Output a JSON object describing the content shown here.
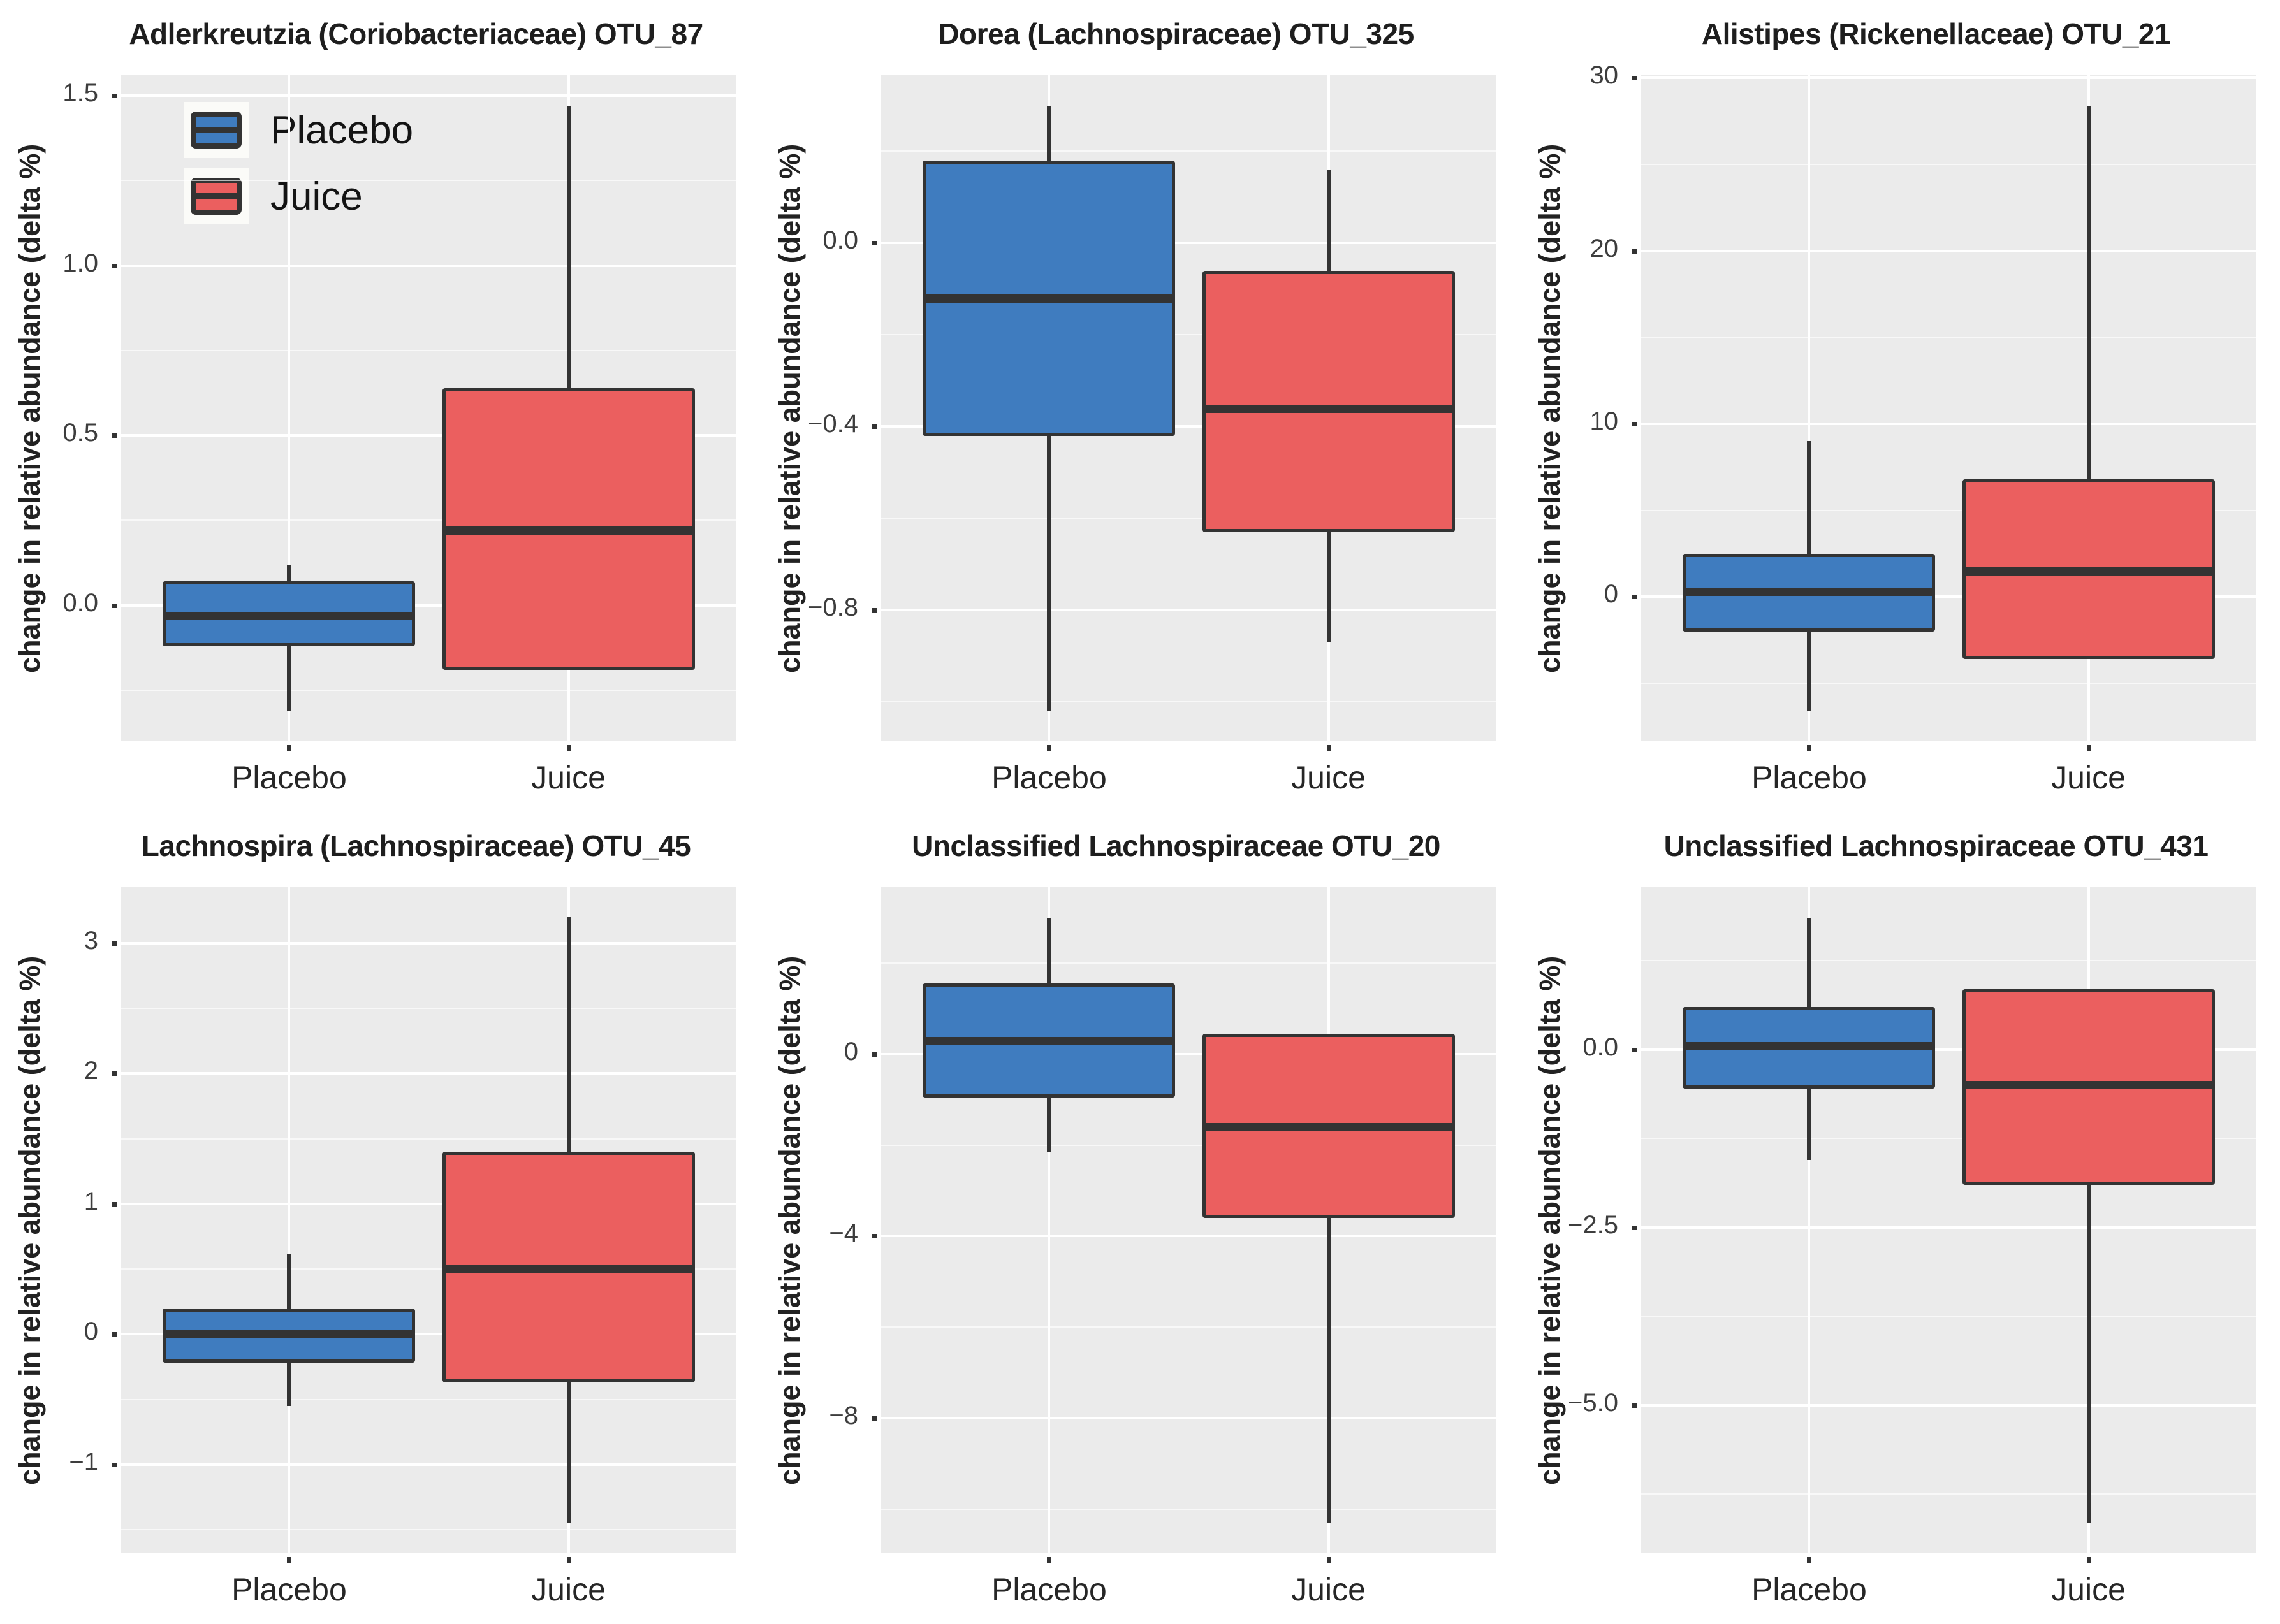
{
  "figure": {
    "kind": "boxplot-grid",
    "rows": 2,
    "cols": 3,
    "ylabel": "change in relative abundance (delta %)"
  },
  "legend": {
    "items": [
      "Placebo",
      "Juice"
    ]
  },
  "colors": {
    "placebo_fill": "#3F7CBF",
    "juice_fill": "#EB5F5F",
    "box_line": "#333333",
    "panel_background": "#EBEBEB",
    "grid_major": "#FFFFFF",
    "title_text": "#1E1E1E",
    "tick_text": "#3D3D3D"
  },
  "chart_data": [
    {
      "type": "box",
      "title": "Adlerkreutzia (Coriobacteriaceae) OTU_87",
      "ylabel": "change in relative abundance (delta %)",
      "categories": [
        "Placebo",
        "Juice"
      ],
      "ylim": [
        -0.4,
        1.56
      ],
      "yticks": [
        {
          "value": 1.5,
          "label": "1.5"
        },
        {
          "value": 1.0,
          "label": "1.0"
        },
        {
          "value": 0.5,
          "label": "0.5"
        },
        {
          "value": 0.0,
          "label": "0.0"
        }
      ],
      "yticks_minor": [
        1.25,
        0.75,
        0.25,
        -0.25
      ],
      "grid": true,
      "legend_position": "top-left-inside",
      "series": [
        {
          "name": "Placebo",
          "color": "#3F7CBF",
          "low": -0.31,
          "q1": -0.12,
          "median": -0.03,
          "q3": 0.07,
          "high": 0.12
        },
        {
          "name": "Juice",
          "color": "#EB5F5F",
          "low": -0.19,
          "q1": -0.19,
          "median": 0.22,
          "q3": 0.64,
          "high": 1.47
        }
      ]
    },
    {
      "type": "box",
      "title": "Dorea (Lachnospiraceae) OTU_325",
      "ylabel": "change in relative abundance (delta %)",
      "categories": [
        "Placebo",
        "Juice"
      ],
      "ylim": [
        -1.086,
        0.366
      ],
      "yticks": [
        {
          "value": 0.0,
          "label": "0.0"
        },
        {
          "value": -0.4,
          "label": "−0.4"
        },
        {
          "value": -0.8,
          "label": "−0.8"
        }
      ],
      "yticks_minor": [
        0.2,
        -0.2,
        -0.6,
        -1.0
      ],
      "grid": true,
      "series": [
        {
          "name": "Placebo",
          "color": "#3F7CBF",
          "low": -1.02,
          "q1": -0.42,
          "median": -0.12,
          "q3": 0.18,
          "high": 0.3
        },
        {
          "name": "Juice",
          "color": "#EB5F5F",
          "low": -0.87,
          "q1": -0.63,
          "median": -0.36,
          "q3": -0.06,
          "high": 0.16
        }
      ]
    },
    {
      "type": "box",
      "title": "Alistipes (Rickenellaceae) OTU_21",
      "ylabel": "change in relative abundance (delta %)",
      "categories": [
        "Placebo",
        "Juice"
      ],
      "ylim": [
        -8.35,
        30.15
      ],
      "yticks": [
        {
          "value": 30,
          "label": "30"
        },
        {
          "value": 20,
          "label": "20"
        },
        {
          "value": 10,
          "label": "10"
        },
        {
          "value": 0,
          "label": "0"
        }
      ],
      "yticks_minor": [
        25,
        15,
        5,
        -5
      ],
      "grid": true,
      "series": [
        {
          "name": "Placebo",
          "color": "#3F7CBF",
          "low": -6.6,
          "q1": -2.0,
          "median": 0.3,
          "q3": 2.5,
          "high": 9.0
        },
        {
          "name": "Juice",
          "color": "#EB5F5F",
          "low": -3.6,
          "q1": -3.6,
          "median": 1.5,
          "q3": 6.8,
          "high": 28.4
        }
      ]
    },
    {
      "type": "box",
      "title": "Lachnospira (Lachnospiraceae) OTU_45",
      "ylabel": "change in relative abundance (delta %)",
      "categories": [
        "Placebo",
        "Juice"
      ],
      "ylim": [
        -1.68,
        3.43
      ],
      "yticks": [
        {
          "value": 3,
          "label": "3"
        },
        {
          "value": 2,
          "label": "2"
        },
        {
          "value": 1,
          "label": "1"
        },
        {
          "value": 0,
          "label": "0"
        },
        {
          "value": -1,
          "label": "−1"
        }
      ],
      "yticks_minor": [
        2.5,
        1.5,
        0.5,
        -0.5,
        -1.5
      ],
      "grid": true,
      "series": [
        {
          "name": "Placebo",
          "color": "#3F7CBF",
          "low": -0.55,
          "q1": -0.22,
          "median": 0.0,
          "q3": 0.2,
          "high": 0.62
        },
        {
          "name": "Juice",
          "color": "#EB5F5F",
          "low": -1.45,
          "q1": -0.37,
          "median": 0.5,
          "q3": 1.4,
          "high": 3.2
        }
      ]
    },
    {
      "type": "box",
      "title": "Unclassified Lachnospiraceae OTU_20",
      "ylabel": "change in relative abundance (delta %)",
      "categories": [
        "Placebo",
        "Juice"
      ],
      "ylim": [
        -10.97,
        3.67
      ],
      "yticks": [
        {
          "value": 0,
          "label": "0"
        },
        {
          "value": -4,
          "label": "−4"
        },
        {
          "value": -8,
          "label": "−8"
        }
      ],
      "yticks_minor": [
        2,
        -2,
        -6,
        -10
      ],
      "grid": true,
      "series": [
        {
          "name": "Placebo",
          "color": "#3F7CBF",
          "low": -2.15,
          "q1": -0.95,
          "median": 0.3,
          "q3": 1.55,
          "high": 3.0
        },
        {
          "name": "Juice",
          "color": "#EB5F5F",
          "low": -10.3,
          "q1": -3.6,
          "median": -1.6,
          "q3": 0.45,
          "high": 0.45
        }
      ]
    },
    {
      "type": "box",
      "title": "Unclassified Lachnospiraceae OTU_431",
      "ylabel": "change in relative abundance (delta %)",
      "categories": [
        "Placebo",
        "Juice"
      ],
      "ylim": [
        -7.08,
        2.28
      ],
      "yticks": [
        {
          "value": 0.0,
          "label": "0.0"
        },
        {
          "value": -2.5,
          "label": "−2.5"
        },
        {
          "value": -5.0,
          "label": "−5.0"
        }
      ],
      "yticks_minor": [
        1.25,
        -1.25,
        -3.75,
        -6.25
      ],
      "grid": true,
      "series": [
        {
          "name": "Placebo",
          "color": "#3F7CBF",
          "low": -1.55,
          "q1": -0.55,
          "median": 0.05,
          "q3": 0.6,
          "high": 1.85
        },
        {
          "name": "Juice",
          "color": "#EB5F5F",
          "low": -6.65,
          "q1": -1.9,
          "median": -0.5,
          "q3": 0.85,
          "high": 0.85
        }
      ]
    }
  ]
}
